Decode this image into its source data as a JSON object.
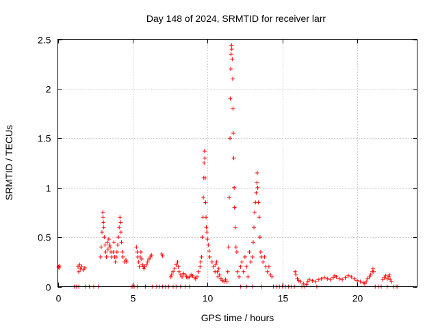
{
  "chart_data": {
    "type": "scatter",
    "title": "Day 148 of 2024, SRMTID for receiver larr",
    "xlabel": "GPS time / hours",
    "ylabel": "SRMTID / TECUs",
    "xlim": [
      0,
      24
    ],
    "ylim": [
      0,
      2.5
    ],
    "grid": true,
    "marker": "+",
    "color": "#ff0000",
    "xticks": [
      0,
      5,
      10,
      15,
      20
    ],
    "xtick_labels": [
      "0",
      "5",
      "10",
      "15",
      "20"
    ],
    "yticks": [
      0,
      0.5,
      1,
      1.5,
      2,
      2.5
    ],
    "ytick_labels": [
      "0",
      "0.5",
      "1",
      "1.5",
      "2",
      "2.5"
    ],
    "series": [
      {
        "name": "SRMTID",
        "points": [
          [
            0.05,
            0.2
          ],
          [
            0.08,
            0.19
          ],
          [
            0.1,
            0.21
          ],
          [
            1.1,
            0.0
          ],
          [
            1.25,
            0.0
          ],
          [
            1.4,
            0.0
          ],
          [
            1.35,
            0.2
          ],
          [
            1.4,
            0.15
          ],
          [
            1.45,
            0.22
          ],
          [
            1.5,
            0.18
          ],
          [
            1.6,
            0.2
          ],
          [
            1.7,
            0.17
          ],
          [
            1.8,
            0.19
          ],
          [
            1.85,
            0.0
          ],
          [
            2.1,
            0.0
          ],
          [
            2.4,
            0.0
          ],
          [
            2.7,
            0.0
          ],
          [
            2.85,
            0.3
          ],
          [
            2.9,
            0.4
          ],
          [
            2.95,
            0.55
          ],
          [
            3.0,
            0.75
          ],
          [
            3.02,
            0.7
          ],
          [
            3.05,
            0.65
          ],
          [
            3.07,
            0.6
          ],
          [
            3.1,
            0.5
          ],
          [
            3.15,
            0.42
          ],
          [
            3.2,
            0.35
          ],
          [
            3.25,
            0.3
          ],
          [
            3.3,
            0.45
          ],
          [
            3.35,
            0.38
          ],
          [
            3.4,
            0.48
          ],
          [
            3.45,
            0.42
          ],
          [
            3.5,
            0.4
          ],
          [
            3.55,
            0.35
          ],
          [
            3.6,
            0.3
          ],
          [
            3.7,
            0.35
          ],
          [
            3.75,
            0.45
          ],
          [
            3.8,
            0.3
          ],
          [
            3.85,
            0.25
          ],
          [
            3.9,
            0.3
          ],
          [
            3.95,
            0.35
          ],
          [
            4.0,
            0.42
          ],
          [
            4.05,
            0.5
          ],
          [
            4.1,
            0.6
          ],
          [
            4.15,
            0.7
          ],
          [
            4.2,
            0.65
          ],
          [
            4.22,
            0.55
          ],
          [
            4.25,
            0.45
          ],
          [
            4.3,
            0.35
          ],
          [
            4.35,
            0.3
          ],
          [
            4.45,
            0.25
          ],
          [
            4.55,
            0.27
          ],
          [
            4.6,
            0.25
          ],
          [
            4.9,
            0.0
          ],
          [
            5.0,
            0.0
          ],
          [
            5.1,
            0.0
          ],
          [
            5.3,
            0.0
          ],
          [
            5.25,
            0.4
          ],
          [
            5.3,
            0.35
          ],
          [
            5.35,
            0.3
          ],
          [
            5.4,
            0.25
          ],
          [
            5.45,
            0.2
          ],
          [
            5.5,
            0.3
          ],
          [
            5.55,
            0.35
          ],
          [
            5.6,
            0.28
          ],
          [
            5.65,
            0.22
          ],
          [
            5.7,
            0.2
          ],
          [
            5.75,
            0.18
          ],
          [
            5.8,
            0.2
          ],
          [
            5.9,
            0.22
          ],
          [
            6.0,
            0.25
          ],
          [
            6.1,
            0.28
          ],
          [
            6.2,
            0.3
          ],
          [
            6.25,
            0.32
          ],
          [
            5.85,
            0.0
          ],
          [
            6.3,
            0.0
          ],
          [
            6.6,
            0.0
          ],
          [
            6.8,
            0.0
          ],
          [
            7.0,
            0.0
          ],
          [
            7.2,
            0.0
          ],
          [
            7.4,
            0.0
          ],
          [
            6.95,
            0.33
          ],
          [
            7.0,
            0.31
          ],
          [
            7.55,
            0.1
          ],
          [
            7.6,
            0.12
          ],
          [
            7.7,
            0.15
          ],
          [
            7.8,
            0.18
          ],
          [
            7.9,
            0.22
          ],
          [
            8.0,
            0.25
          ],
          [
            8.05,
            0.2
          ],
          [
            8.1,
            0.15
          ],
          [
            8.2,
            0.12
          ],
          [
            8.3,
            0.1
          ],
          [
            8.4,
            0.13
          ],
          [
            8.5,
            0.12
          ],
          [
            8.6,
            0.1
          ],
          [
            8.7,
            0.09
          ],
          [
            8.8,
            0.1
          ],
          [
            8.9,
            0.12
          ],
          [
            9.0,
            0.11
          ],
          [
            9.1,
            0.09
          ],
          [
            9.2,
            0.08
          ],
          [
            9.3,
            0.1
          ],
          [
            9.4,
            0.15
          ],
          [
            9.5,
            0.2
          ],
          [
            9.55,
            0.25
          ],
          [
            7.7,
            0.0
          ],
          [
            7.9,
            0.0
          ],
          [
            8.2,
            0.0
          ],
          [
            8.5,
            0.0
          ],
          [
            8.8,
            0.0
          ],
          [
            9.6,
            0.3
          ],
          [
            9.65,
            0.5
          ],
          [
            9.7,
            0.7
          ],
          [
            9.72,
            0.9
          ],
          [
            9.75,
            1.1
          ],
          [
            9.77,
            1.25
          ],
          [
            9.8,
            1.37
          ],
          [
            9.82,
            1.3
          ],
          [
            9.85,
            1.1
          ],
          [
            9.87,
            0.85
          ],
          [
            9.9,
            0.7
          ],
          [
            9.92,
            0.6
          ],
          [
            9.95,
            0.55
          ],
          [
            10.0,
            0.48
          ],
          [
            10.05,
            0.42
          ],
          [
            10.1,
            0.36
          ],
          [
            10.15,
            0.3
          ],
          [
            10.3,
            0.25
          ],
          [
            10.4,
            0.2
          ],
          [
            10.5,
            0.15
          ],
          [
            10.55,
            0.22
          ],
          [
            10.6,
            0.25
          ],
          [
            10.65,
            0.15
          ],
          [
            10.7,
            0.1
          ],
          [
            10.75,
            0.18
          ],
          [
            10.8,
            0.12
          ],
          [
            10.9,
            0.08
          ],
          [
            11.0,
            0.06
          ],
          [
            11.1,
            0.05
          ],
          [
            11.2,
            0.07
          ],
          [
            11.3,
            0.05
          ],
          [
            11.35,
            0.15
          ],
          [
            11.4,
            0.4
          ],
          [
            11.45,
            0.9
          ],
          [
            11.5,
            1.5
          ],
          [
            11.52,
            1.9
          ],
          [
            11.55,
            2.2
          ],
          [
            11.57,
            2.35
          ],
          [
            11.6,
            2.44
          ],
          [
            11.62,
            2.4
          ],
          [
            11.65,
            2.3
          ],
          [
            11.68,
            2.1
          ],
          [
            11.7,
            1.8
          ],
          [
            11.72,
            1.55
          ],
          [
            11.75,
            1.3
          ],
          [
            11.78,
            1.0
          ],
          [
            11.8,
            0.8
          ],
          [
            11.85,
            0.6
          ],
          [
            11.9,
            0.4
          ],
          [
            11.95,
            0.35
          ],
          [
            12.0,
            0.15
          ],
          [
            12.1,
            0.1
          ],
          [
            12.2,
            0.2
          ],
          [
            12.3,
            0.25
          ],
          [
            12.4,
            0.15
          ],
          [
            12.5,
            0.3
          ],
          [
            12.6,
            0.2
          ],
          [
            12.7,
            0.1
          ],
          [
            12.8,
            0.35
          ],
          [
            12.9,
            0.25
          ],
          [
            13.0,
            0.3
          ],
          [
            13.05,
            0.45
          ],
          [
            13.1,
            0.6
          ],
          [
            13.15,
            0.75
          ],
          [
            13.2,
            0.85
          ],
          [
            13.25,
            0.95
          ],
          [
            13.3,
            1.05
          ],
          [
            13.32,
            1.15
          ],
          [
            13.35,
            1.0
          ],
          [
            13.4,
            0.85
          ],
          [
            13.45,
            0.7
          ],
          [
            13.5,
            0.5
          ],
          [
            13.55,
            0.35
          ],
          [
            13.6,
            0.3
          ],
          [
            13.7,
            0.25
          ],
          [
            13.8,
            0.3
          ],
          [
            13.9,
            0.2
          ],
          [
            14.0,
            0.15
          ],
          [
            14.1,
            0.2
          ],
          [
            14.2,
            0.12
          ],
          [
            14.3,
            0.1
          ],
          [
            12.2,
            0.0
          ],
          [
            12.6,
            0.0
          ],
          [
            13.0,
            0.0
          ],
          [
            13.6,
            0.0
          ],
          [
            14.4,
            0.0
          ],
          [
            14.6,
            0.0
          ],
          [
            14.8,
            0.0
          ],
          [
            15.0,
            0.0
          ],
          [
            15.2,
            0.0
          ],
          [
            15.4,
            0.0
          ],
          [
            15.6,
            0.0
          ],
          [
            15.8,
            0.0
          ],
          [
            15.85,
            0.15
          ],
          [
            15.9,
            0.12
          ],
          [
            16.0,
            0.08
          ],
          [
            16.1,
            0.06
          ],
          [
            16.2,
            0.05
          ],
          [
            16.4,
            0.03
          ],
          [
            16.6,
            0.02
          ],
          [
            16.7,
            0.05
          ],
          [
            16.8,
            0.07
          ],
          [
            17.0,
            0.06
          ],
          [
            17.2,
            0.05
          ],
          [
            17.4,
            0.07
          ],
          [
            17.6,
            0.08
          ],
          [
            17.8,
            0.09
          ],
          [
            18.0,
            0.08
          ],
          [
            18.2,
            0.07
          ],
          [
            18.4,
            0.09
          ],
          [
            18.5,
            0.11
          ],
          [
            18.6,
            0.1
          ],
          [
            18.8,
            0.08
          ],
          [
            19.0,
            0.07
          ],
          [
            19.2,
            0.09
          ],
          [
            19.4,
            0.11
          ],
          [
            19.6,
            0.1
          ],
          [
            19.8,
            0.08
          ],
          [
            20.0,
            0.06
          ],
          [
            20.2,
            0.05
          ],
          [
            20.4,
            0.04
          ],
          [
            20.5,
            0.03
          ],
          [
            16.3,
            0.0
          ],
          [
            16.5,
            0.0
          ],
          [
            17.3,
            0.0
          ],
          [
            20.6,
            0.05
          ],
          [
            20.7,
            0.08
          ],
          [
            20.8,
            0.1
          ],
          [
            20.9,
            0.12
          ],
          [
            21.0,
            0.15
          ],
          [
            21.05,
            0.18
          ],
          [
            21.1,
            0.15
          ],
          [
            21.2,
            0.0
          ],
          [
            21.4,
            0.0
          ],
          [
            21.6,
            0.0
          ],
          [
            21.7,
            0.07
          ],
          [
            21.8,
            0.09
          ],
          [
            21.9,
            0.11
          ],
          [
            22.0,
            0.08
          ],
          [
            22.1,
            0.1
          ],
          [
            22.15,
            0.12
          ],
          [
            22.2,
            0.07
          ],
          [
            22.3,
            0.05
          ],
          [
            22.0,
            0.0
          ],
          [
            22.4,
            0.0
          ],
          [
            22.6,
            0.0
          ],
          [
            22.7,
            0.0
          ]
        ]
      }
    ]
  }
}
